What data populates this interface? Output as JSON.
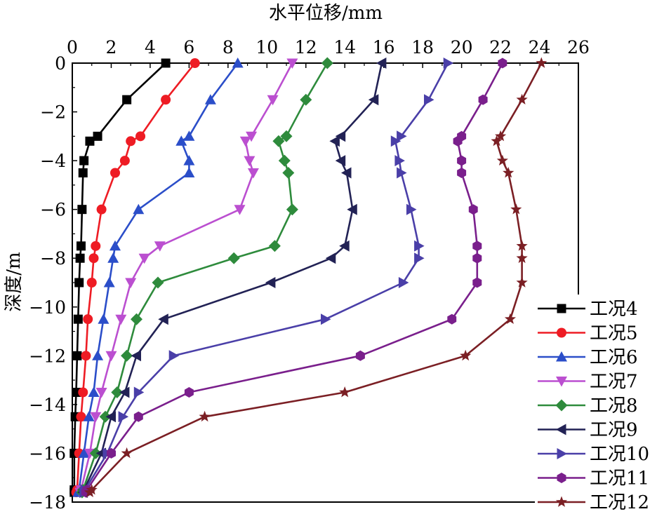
{
  "chart_data": {
    "type": "line",
    "xlabel": "水平位移/mm",
    "ylabel": "深度/m",
    "xlim": [
      0,
      26
    ],
    "ylim": [
      -18,
      0
    ],
    "x_ticks": [
      "0",
      "2",
      "4",
      "6",
      "8",
      "10",
      "12",
      "14",
      "16",
      "18",
      "20",
      "22",
      "24",
      "26"
    ],
    "y_ticks": [
      "0",
      "−2",
      "−4",
      "−6",
      "−8",
      "−10",
      "−12",
      "−14",
      "−16",
      "−18"
    ],
    "x_axis_position": "top",
    "grid": false,
    "legend_position": "bottom-right",
    "series": [
      {
        "name": "工况4",
        "color": "#000000",
        "marker": "square",
        "x": [
          4.8,
          2.8,
          1.3,
          0.9,
          0.6,
          0.55,
          0.5,
          0.45,
          0.4,
          0.35,
          0.3,
          0.25,
          0.2,
          0.15,
          0.1,
          0.1,
          0.1
        ],
        "y": [
          0,
          -1.5,
          -3,
          -3.2,
          -4,
          -4.5,
          -6,
          -7.5,
          -8,
          -9,
          -10.5,
          -12,
          -13.5,
          -14.5,
          -16,
          -17.5,
          -17.6
        ]
      },
      {
        "name": "工况5",
        "color": "#ee1c24",
        "marker": "circle",
        "x": [
          6.3,
          4.8,
          3.5,
          3.0,
          2.7,
          2.2,
          1.5,
          1.2,
          1.1,
          1.0,
          0.8,
          0.7,
          0.55,
          0.45,
          0.35,
          0.25,
          0.2
        ],
        "y": [
          0,
          -1.5,
          -3,
          -3.2,
          -4,
          -4.5,
          -6,
          -7.5,
          -8,
          -9,
          -10.5,
          -12,
          -13.5,
          -14.5,
          -16,
          -17.5,
          -17.6
        ]
      },
      {
        "name": "工况6",
        "color": "#2b4ec9",
        "marker": "triangle-up",
        "x": [
          8.5,
          7.1,
          6.0,
          5.6,
          6.0,
          6.0,
          3.4,
          2.2,
          2.1,
          1.9,
          1.6,
          1.3,
          1.1,
          0.85,
          0.6,
          0.35,
          0.3
        ],
        "y": [
          0,
          -1.5,
          -3,
          -3.2,
          -4,
          -4.5,
          -6,
          -7.5,
          -8,
          -9,
          -10.5,
          -12,
          -13.5,
          -14.5,
          -16,
          -17.5,
          -17.6
        ]
      },
      {
        "name": "工况7",
        "color": "#bb4fd0",
        "marker": "triangle-down",
        "x": [
          11.3,
          10.3,
          9.2,
          8.9,
          9.1,
          9.3,
          8.6,
          4.5,
          3.7,
          3.0,
          2.5,
          2.0,
          1.5,
          1.2,
          0.9,
          0.45,
          0.4
        ],
        "y": [
          0,
          -1.5,
          -3,
          -3.2,
          -4,
          -4.5,
          -6,
          -7.5,
          -8,
          -9,
          -10.5,
          -12,
          -13.5,
          -14.5,
          -16,
          -17.5,
          -17.6
        ]
      },
      {
        "name": "工况8",
        "color": "#2e8b3c",
        "marker": "diamond",
        "x": [
          13.1,
          12.0,
          11.0,
          10.6,
          10.9,
          11.1,
          11.3,
          10.4,
          8.3,
          4.4,
          3.3,
          2.8,
          2.3,
          1.7,
          1.2,
          0.55,
          0.5
        ],
        "y": [
          0,
          -1.5,
          -3,
          -3.2,
          -4,
          -4.5,
          -6,
          -7.5,
          -8,
          -9,
          -10.5,
          -12,
          -13.5,
          -14.5,
          -16,
          -17.5,
          -17.6
        ]
      },
      {
        "name": "工况9",
        "color": "#222255",
        "marker": "triangle-left",
        "x": [
          15.9,
          15.5,
          13.8,
          13.5,
          13.8,
          14.1,
          14.4,
          14.0,
          13.3,
          10.2,
          4.7,
          3.3,
          2.7,
          2.0,
          1.5,
          0.6,
          0.55
        ],
        "y": [
          0,
          -1.5,
          -3,
          -3.2,
          -4,
          -4.5,
          -6,
          -7.5,
          -8,
          -9,
          -10.5,
          -12,
          -13.5,
          -14.5,
          -16,
          -17.5,
          -17.6
        ]
      },
      {
        "name": "工况10",
        "color": "#4a3fa8",
        "marker": "triangle-right",
        "x": [
          19.3,
          18.3,
          16.9,
          16.6,
          16.8,
          16.9,
          17.4,
          17.8,
          17.8,
          17.0,
          13.0,
          5.2,
          3.4,
          2.6,
          1.8,
          0.65,
          0.6
        ],
        "y": [
          0,
          -1.5,
          -3,
          -3.2,
          -4,
          -4.5,
          -6,
          -7.5,
          -8,
          -9,
          -10.5,
          -12,
          -13.5,
          -14.5,
          -16,
          -17.5,
          -17.6
        ]
      },
      {
        "name": "工况11",
        "color": "#7a1f8c",
        "marker": "hexagon",
        "x": [
          22.1,
          21.1,
          20.0,
          19.8,
          20.0,
          20.0,
          20.6,
          20.8,
          20.8,
          20.8,
          19.5,
          14.8,
          6.0,
          3.4,
          2.0,
          0.75,
          0.7
        ],
        "y": [
          0,
          -1.5,
          -3,
          -3.2,
          -4,
          -4.5,
          -6,
          -7.5,
          -8,
          -9,
          -10.5,
          -12,
          -13.5,
          -14.5,
          -16,
          -17.5,
          -17.6
        ]
      },
      {
        "name": "工况12",
        "color": "#7b1f24",
        "marker": "star",
        "x": [
          24.1,
          23.1,
          22.0,
          21.8,
          22.1,
          22.4,
          22.8,
          23.1,
          23.1,
          23.1,
          22.5,
          20.2,
          14.0,
          6.8,
          2.8,
          1.0,
          0.9
        ],
        "y": [
          0,
          -1.5,
          -3,
          -3.2,
          -4,
          -4.5,
          -6,
          -7.5,
          -8,
          -9,
          -10.5,
          -12,
          -13.5,
          -14.5,
          -16,
          -17.5,
          -17.6
        ]
      }
    ]
  }
}
